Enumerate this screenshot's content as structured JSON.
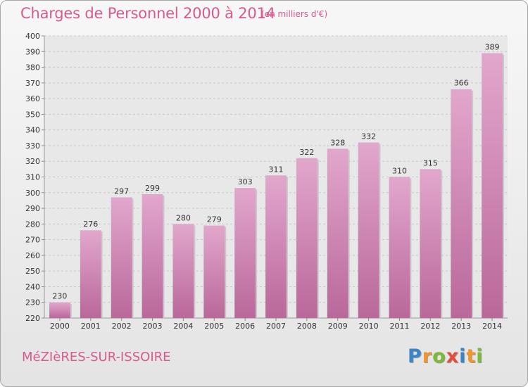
{
  "header": {
    "title": "Charges de Personnel 2000 à 2014",
    "subtitle": "(en milliers d'€)"
  },
  "footer": {
    "commune": "MéZIèRES-SUR-ISSOIRE",
    "brand": [
      "P",
      "r",
      "o",
      "x",
      "i",
      "t",
      "i"
    ],
    "brand_colors": [
      "#3a84c8",
      "#f0962a",
      "#7cb934",
      "#e64b3c",
      "#3a84c8",
      "#f0962a",
      "#7cb934"
    ]
  },
  "colors": {
    "accent": "#d85a8e",
    "bar_top": "#e2a7cd",
    "bar_bottom": "#b9689a",
    "grid": "#c8c8c8"
  },
  "chart_data": {
    "type": "bar",
    "title": "Charges de Personnel 2000 à 2014",
    "subtitle": "(en milliers d'€)",
    "categories": [
      "2000",
      "2001",
      "2002",
      "2003",
      "2004",
      "2005",
      "2006",
      "2007",
      "2008",
      "2009",
      "2010",
      "2011",
      "2012",
      "2013",
      "2014"
    ],
    "values": [
      230,
      276,
      297,
      299,
      280,
      279,
      303,
      311,
      322,
      328,
      332,
      310,
      315,
      366,
      389
    ],
    "ylim": [
      220,
      400
    ],
    "ytick_step": 10,
    "grid": true,
    "data_labels": true
  }
}
